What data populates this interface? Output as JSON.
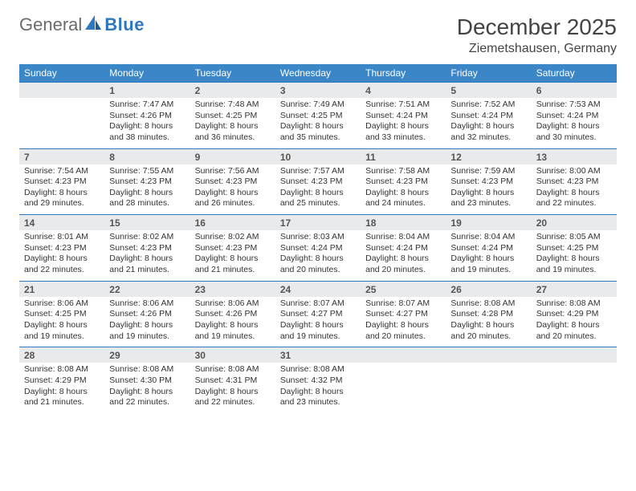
{
  "brand": {
    "word1": "General",
    "word2": "Blue"
  },
  "title": "December 2025",
  "location": "Ziemetshausen, Germany",
  "colors": {
    "header_bg": "#3b86c6",
    "header_text": "#ffffff",
    "strip_bg": "#e9eaec",
    "border": "#2d78bf",
    "logo_gray": "#6b6b6b",
    "logo_blue": "#2d78bf",
    "text": "#333333",
    "page_bg": "#ffffff"
  },
  "day_headers": [
    "Sunday",
    "Monday",
    "Tuesday",
    "Wednesday",
    "Thursday",
    "Friday",
    "Saturday"
  ],
  "weeks": [
    [
      {
        "n": "",
        "sr": "",
        "ss": "",
        "dl": ""
      },
      {
        "n": "1",
        "sr": "Sunrise: 7:47 AM",
        "ss": "Sunset: 4:26 PM",
        "dl": "Daylight: 8 hours and 38 minutes."
      },
      {
        "n": "2",
        "sr": "Sunrise: 7:48 AM",
        "ss": "Sunset: 4:25 PM",
        "dl": "Daylight: 8 hours and 36 minutes."
      },
      {
        "n": "3",
        "sr": "Sunrise: 7:49 AM",
        "ss": "Sunset: 4:25 PM",
        "dl": "Daylight: 8 hours and 35 minutes."
      },
      {
        "n": "4",
        "sr": "Sunrise: 7:51 AM",
        "ss": "Sunset: 4:24 PM",
        "dl": "Daylight: 8 hours and 33 minutes."
      },
      {
        "n": "5",
        "sr": "Sunrise: 7:52 AM",
        "ss": "Sunset: 4:24 PM",
        "dl": "Daylight: 8 hours and 32 minutes."
      },
      {
        "n": "6",
        "sr": "Sunrise: 7:53 AM",
        "ss": "Sunset: 4:24 PM",
        "dl": "Daylight: 8 hours and 30 minutes."
      }
    ],
    [
      {
        "n": "7",
        "sr": "Sunrise: 7:54 AM",
        "ss": "Sunset: 4:23 PM",
        "dl": "Daylight: 8 hours and 29 minutes."
      },
      {
        "n": "8",
        "sr": "Sunrise: 7:55 AM",
        "ss": "Sunset: 4:23 PM",
        "dl": "Daylight: 8 hours and 28 minutes."
      },
      {
        "n": "9",
        "sr": "Sunrise: 7:56 AM",
        "ss": "Sunset: 4:23 PM",
        "dl": "Daylight: 8 hours and 26 minutes."
      },
      {
        "n": "10",
        "sr": "Sunrise: 7:57 AM",
        "ss": "Sunset: 4:23 PM",
        "dl": "Daylight: 8 hours and 25 minutes."
      },
      {
        "n": "11",
        "sr": "Sunrise: 7:58 AM",
        "ss": "Sunset: 4:23 PM",
        "dl": "Daylight: 8 hours and 24 minutes."
      },
      {
        "n": "12",
        "sr": "Sunrise: 7:59 AM",
        "ss": "Sunset: 4:23 PM",
        "dl": "Daylight: 8 hours and 23 minutes."
      },
      {
        "n": "13",
        "sr": "Sunrise: 8:00 AM",
        "ss": "Sunset: 4:23 PM",
        "dl": "Daylight: 8 hours and 22 minutes."
      }
    ],
    [
      {
        "n": "14",
        "sr": "Sunrise: 8:01 AM",
        "ss": "Sunset: 4:23 PM",
        "dl": "Daylight: 8 hours and 22 minutes."
      },
      {
        "n": "15",
        "sr": "Sunrise: 8:02 AM",
        "ss": "Sunset: 4:23 PM",
        "dl": "Daylight: 8 hours and 21 minutes."
      },
      {
        "n": "16",
        "sr": "Sunrise: 8:02 AM",
        "ss": "Sunset: 4:23 PM",
        "dl": "Daylight: 8 hours and 21 minutes."
      },
      {
        "n": "17",
        "sr": "Sunrise: 8:03 AM",
        "ss": "Sunset: 4:24 PM",
        "dl": "Daylight: 8 hours and 20 minutes."
      },
      {
        "n": "18",
        "sr": "Sunrise: 8:04 AM",
        "ss": "Sunset: 4:24 PM",
        "dl": "Daylight: 8 hours and 20 minutes."
      },
      {
        "n": "19",
        "sr": "Sunrise: 8:04 AM",
        "ss": "Sunset: 4:24 PM",
        "dl": "Daylight: 8 hours and 19 minutes."
      },
      {
        "n": "20",
        "sr": "Sunrise: 8:05 AM",
        "ss": "Sunset: 4:25 PM",
        "dl": "Daylight: 8 hours and 19 minutes."
      }
    ],
    [
      {
        "n": "21",
        "sr": "Sunrise: 8:06 AM",
        "ss": "Sunset: 4:25 PM",
        "dl": "Daylight: 8 hours and 19 minutes."
      },
      {
        "n": "22",
        "sr": "Sunrise: 8:06 AM",
        "ss": "Sunset: 4:26 PM",
        "dl": "Daylight: 8 hours and 19 minutes."
      },
      {
        "n": "23",
        "sr": "Sunrise: 8:06 AM",
        "ss": "Sunset: 4:26 PM",
        "dl": "Daylight: 8 hours and 19 minutes."
      },
      {
        "n": "24",
        "sr": "Sunrise: 8:07 AM",
        "ss": "Sunset: 4:27 PM",
        "dl": "Daylight: 8 hours and 19 minutes."
      },
      {
        "n": "25",
        "sr": "Sunrise: 8:07 AM",
        "ss": "Sunset: 4:27 PM",
        "dl": "Daylight: 8 hours and 20 minutes."
      },
      {
        "n": "26",
        "sr": "Sunrise: 8:08 AM",
        "ss": "Sunset: 4:28 PM",
        "dl": "Daylight: 8 hours and 20 minutes."
      },
      {
        "n": "27",
        "sr": "Sunrise: 8:08 AM",
        "ss": "Sunset: 4:29 PM",
        "dl": "Daylight: 8 hours and 20 minutes."
      }
    ],
    [
      {
        "n": "28",
        "sr": "Sunrise: 8:08 AM",
        "ss": "Sunset: 4:29 PM",
        "dl": "Daylight: 8 hours and 21 minutes."
      },
      {
        "n": "29",
        "sr": "Sunrise: 8:08 AM",
        "ss": "Sunset: 4:30 PM",
        "dl": "Daylight: 8 hours and 22 minutes."
      },
      {
        "n": "30",
        "sr": "Sunrise: 8:08 AM",
        "ss": "Sunset: 4:31 PM",
        "dl": "Daylight: 8 hours and 22 minutes."
      },
      {
        "n": "31",
        "sr": "Sunrise: 8:08 AM",
        "ss": "Sunset: 4:32 PM",
        "dl": "Daylight: 8 hours and 23 minutes."
      },
      {
        "n": "",
        "sr": "",
        "ss": "",
        "dl": ""
      },
      {
        "n": "",
        "sr": "",
        "ss": "",
        "dl": ""
      },
      {
        "n": "",
        "sr": "",
        "ss": "",
        "dl": ""
      }
    ]
  ]
}
